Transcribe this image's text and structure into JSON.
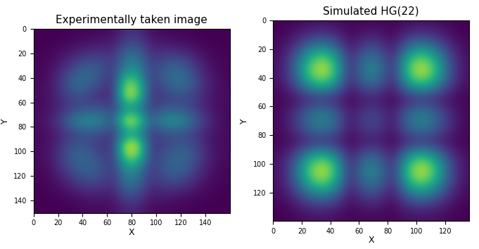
{
  "chart_data": [
    {
      "type": "heatmap",
      "title": "Experimentally taken image",
      "x_label": "X",
      "y_label": "Y",
      "xlim": [
        0,
        160
      ],
      "ylim": [
        150,
        0
      ],
      "xticks": [
        0,
        20,
        40,
        60,
        80,
        100,
        120,
        140
      ],
      "yticks": [
        0,
        20,
        40,
        60,
        80,
        100,
        120,
        140
      ],
      "cells": [
        [
          0.1,
          0.1,
          0.1,
          0.11,
          0.11,
          0.12,
          0.13,
          0.2,
          0.2,
          0.13,
          0.12,
          0.11,
          0.11,
          0.1,
          0.1,
          0.1
        ],
        [
          0.1,
          0.11,
          0.12,
          0.14,
          0.16,
          0.17,
          0.18,
          0.3,
          0.3,
          0.18,
          0.17,
          0.16,
          0.14,
          0.12,
          0.11,
          0.1
        ],
        [
          0.11,
          0.12,
          0.16,
          0.22,
          0.26,
          0.26,
          0.22,
          0.4,
          0.4,
          0.22,
          0.26,
          0.28,
          0.24,
          0.16,
          0.12,
          0.11
        ],
        [
          0.11,
          0.14,
          0.22,
          0.32,
          0.36,
          0.3,
          0.22,
          0.5,
          0.48,
          0.24,
          0.32,
          0.38,
          0.32,
          0.2,
          0.14,
          0.11
        ],
        [
          0.12,
          0.15,
          0.26,
          0.38,
          0.34,
          0.25,
          0.2,
          0.75,
          0.65,
          0.22,
          0.3,
          0.38,
          0.36,
          0.24,
          0.15,
          0.12
        ],
        [
          0.12,
          0.15,
          0.22,
          0.28,
          0.24,
          0.18,
          0.2,
          0.8,
          0.7,
          0.2,
          0.22,
          0.26,
          0.26,
          0.2,
          0.14,
          0.12
        ],
        [
          0.12,
          0.14,
          0.2,
          0.26,
          0.28,
          0.3,
          0.24,
          0.45,
          0.4,
          0.24,
          0.3,
          0.3,
          0.28,
          0.2,
          0.14,
          0.12
        ],
        [
          0.13,
          0.18,
          0.3,
          0.45,
          0.5,
          0.45,
          0.3,
          0.85,
          0.75,
          0.32,
          0.48,
          0.5,
          0.42,
          0.28,
          0.17,
          0.12
        ],
        [
          0.12,
          0.14,
          0.2,
          0.26,
          0.28,
          0.26,
          0.22,
          0.45,
          0.45,
          0.22,
          0.26,
          0.28,
          0.26,
          0.2,
          0.14,
          0.12
        ],
        [
          0.12,
          0.15,
          0.24,
          0.3,
          0.28,
          0.22,
          0.22,
          0.85,
          0.8,
          0.22,
          0.24,
          0.3,
          0.3,
          0.22,
          0.14,
          0.12
        ],
        [
          0.12,
          0.16,
          0.26,
          0.36,
          0.34,
          0.26,
          0.22,
          0.7,
          0.65,
          0.22,
          0.3,
          0.36,
          0.34,
          0.24,
          0.15,
          0.12
        ],
        [
          0.11,
          0.14,
          0.22,
          0.3,
          0.34,
          0.3,
          0.22,
          0.45,
          0.42,
          0.22,
          0.3,
          0.34,
          0.3,
          0.2,
          0.13,
          0.11
        ],
        [
          0.11,
          0.12,
          0.16,
          0.22,
          0.26,
          0.24,
          0.2,
          0.4,
          0.36,
          0.2,
          0.24,
          0.26,
          0.22,
          0.15,
          0.12,
          0.11
        ],
        [
          0.1,
          0.11,
          0.12,
          0.14,
          0.16,
          0.16,
          0.16,
          0.28,
          0.26,
          0.16,
          0.16,
          0.15,
          0.13,
          0.12,
          0.11,
          0.1
        ],
        [
          0.1,
          0.1,
          0.1,
          0.11,
          0.12,
          0.12,
          0.13,
          0.18,
          0.17,
          0.12,
          0.12,
          0.11,
          0.11,
          0.1,
          0.1,
          0.1
        ]
      ]
    },
    {
      "type": "heatmap",
      "title": "Simulated HG(22)",
      "x_label": "X",
      "y_label": "Y",
      "xlim": [
        0,
        137
      ],
      "ylim": [
        140,
        0
      ],
      "xticks": [
        0,
        20,
        40,
        60,
        80,
        100,
        120
      ],
      "yticks": [
        0,
        20,
        40,
        60,
        80,
        100,
        120
      ],
      "cells": [
        [
          0,
          0.02,
          0.04,
          0.05,
          0.04,
          0.01,
          0.02,
          0.02,
          0.01,
          0.04,
          0.05,
          0.04,
          0.02,
          0
        ],
        [
          0.02,
          0.09,
          0.23,
          0.3,
          0.21,
          0.03,
          0.14,
          0.14,
          0.03,
          0.21,
          0.3,
          0.23,
          0.09,
          0.02
        ],
        [
          0.04,
          0.23,
          0.56,
          0.75,
          0.53,
          0.08,
          0.34,
          0.34,
          0.08,
          0.53,
          0.75,
          0.56,
          0.23,
          0.04
        ],
        [
          0.05,
          0.3,
          0.75,
          1.0,
          0.7,
          0.1,
          0.45,
          0.45,
          0.1,
          0.7,
          1.0,
          0.75,
          0.3,
          0.05
        ],
        [
          0.04,
          0.21,
          0.53,
          0.7,
          0.49,
          0.07,
          0.32,
          0.32,
          0.07,
          0.49,
          0.7,
          0.53,
          0.21,
          0.04
        ],
        [
          0.01,
          0.03,
          0.08,
          0.1,
          0.07,
          0.01,
          0.05,
          0.05,
          0.01,
          0.07,
          0.1,
          0.08,
          0.03,
          0.01
        ],
        [
          0.02,
          0.14,
          0.34,
          0.45,
          0.32,
          0.05,
          0.2,
          0.2,
          0.05,
          0.32,
          0.45,
          0.34,
          0.14,
          0.02
        ],
        [
          0.02,
          0.14,
          0.34,
          0.45,
          0.32,
          0.05,
          0.2,
          0.2,
          0.05,
          0.32,
          0.45,
          0.34,
          0.14,
          0.02
        ],
        [
          0.01,
          0.03,
          0.08,
          0.1,
          0.07,
          0.01,
          0.05,
          0.05,
          0.01,
          0.07,
          0.1,
          0.08,
          0.03,
          0.01
        ],
        [
          0.04,
          0.21,
          0.53,
          0.7,
          0.49,
          0.07,
          0.32,
          0.32,
          0.07,
          0.49,
          0.7,
          0.53,
          0.21,
          0.04
        ],
        [
          0.05,
          0.3,
          0.75,
          1.0,
          0.7,
          0.1,
          0.45,
          0.45,
          0.1,
          0.7,
          1.0,
          0.75,
          0.3,
          0.05
        ],
        [
          0.04,
          0.23,
          0.56,
          0.75,
          0.53,
          0.08,
          0.34,
          0.34,
          0.08,
          0.53,
          0.75,
          0.56,
          0.23,
          0.04
        ],
        [
          0.02,
          0.09,
          0.23,
          0.3,
          0.21,
          0.03,
          0.14,
          0.14,
          0.03,
          0.21,
          0.3,
          0.23,
          0.09,
          0.02
        ],
        [
          0,
          0.02,
          0.04,
          0.05,
          0.04,
          0.01,
          0.02,
          0.02,
          0.01,
          0.04,
          0.05,
          0.04,
          0.02,
          0
        ]
      ]
    }
  ]
}
